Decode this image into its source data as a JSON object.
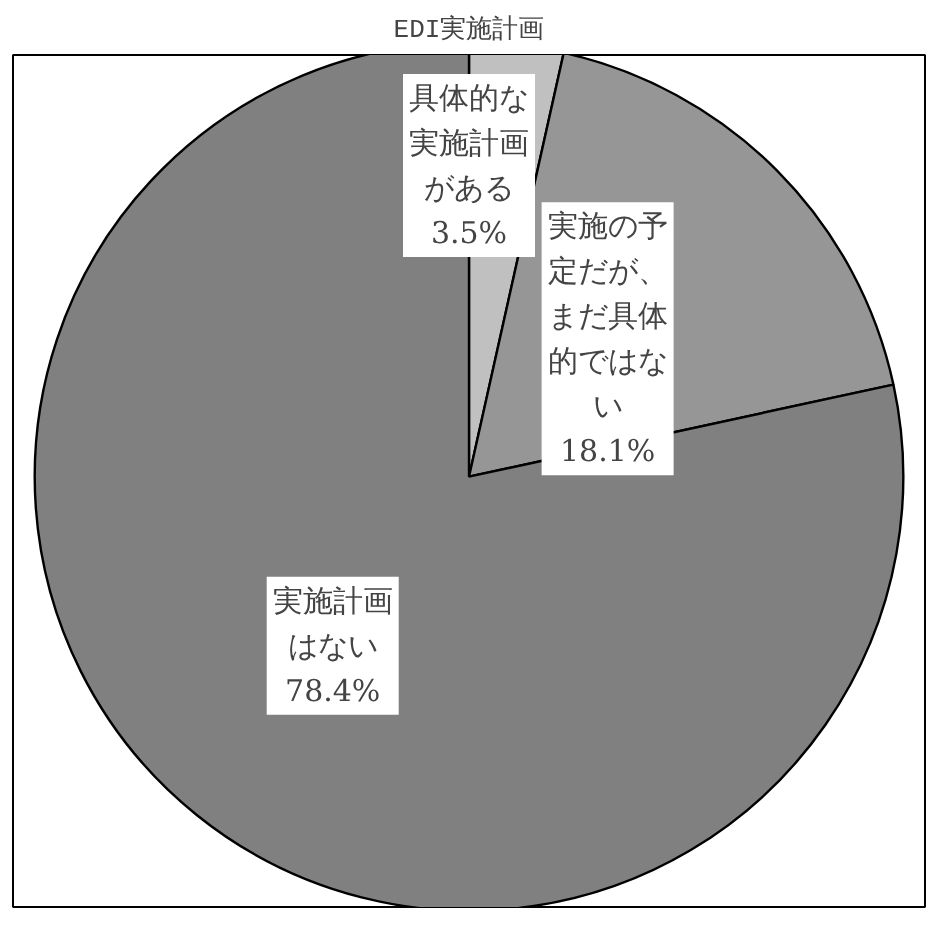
{
  "chart_data": {
    "type": "pie",
    "title": "EDI実施計画",
    "categories": [
      "具体的な実施計画がある",
      "実施の予定だが、まだ具体的ではない",
      "実施計画はない"
    ],
    "values": [
      3.5,
      18.1,
      78.4
    ],
    "colors": [
      "#c0c0c0",
      "#969696",
      "#808080"
    ],
    "value_labels": [
      "3.5%",
      "18.1%",
      "78.4%"
    ]
  }
}
